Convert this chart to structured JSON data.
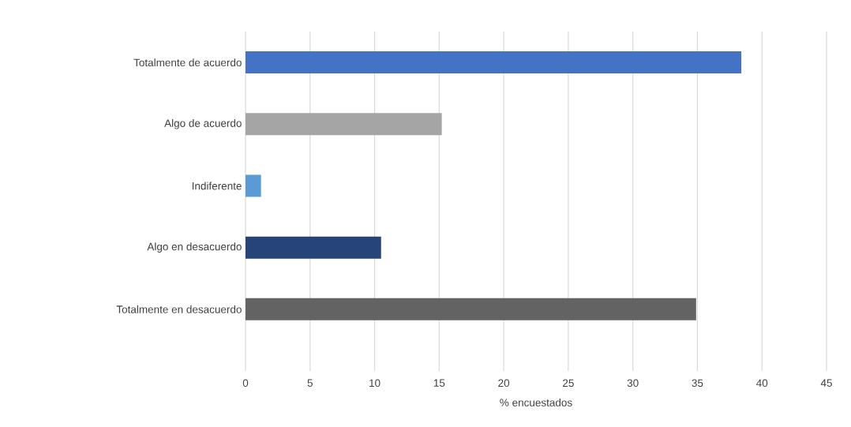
{
  "chart_data": {
    "type": "bar",
    "orientation": "horizontal",
    "xlabel": "% encuestados",
    "categories": [
      "Totalmente de acuerdo",
      "Algo de acuerdo",
      "Indiferente",
      "Algo en desacuerdo",
      "Totalmente en desacuerdo"
    ],
    "values": [
      38.4,
      15.2,
      1.2,
      10.5,
      34.9
    ],
    "colors": [
      "#4472c4",
      "#a5a5a5",
      "#5b9bd5",
      "#264478",
      "#636363"
    ],
    "xlim": [
      0,
      45
    ],
    "xticks": [
      0,
      5,
      10,
      15,
      20,
      25,
      30,
      35,
      40,
      45
    ],
    "grid": "x"
  }
}
